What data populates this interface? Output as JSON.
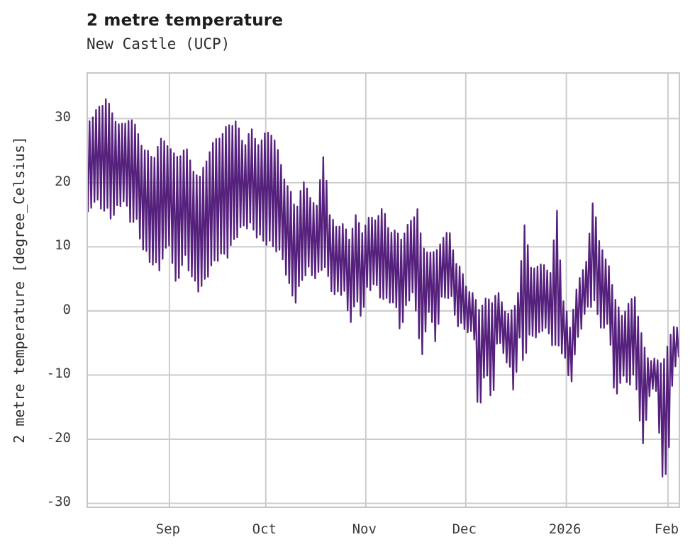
{
  "header": {
    "title": "2 metre temperature",
    "subtitle": "New Castle (UCP)"
  },
  "chart_data": {
    "type": "line",
    "title": "2 metre temperature",
    "subtitle": "New Castle (UCP)",
    "xlabel": "",
    "ylabel": "2 metre temperature [degree_Celsius]",
    "unit": "degree_Celsius",
    "grid": true,
    "legend": false,
    "line_color": "#56217D",
    "grid_color": "#cccccc",
    "frame_color": "#c7c7c7",
    "ylim": [
      -30.5,
      37.0
    ],
    "xlim_days": [
      0,
      182
    ],
    "y_ticks": [
      30,
      20,
      10,
      0,
      -10,
      -20,
      -30
    ],
    "x_ticks": [
      {
        "label": "Sep",
        "day": 25.1
      },
      {
        "label": "Oct",
        "day": 54.8
      },
      {
        "label": "Nov",
        "day": 85.6
      },
      {
        "label": "Dec",
        "day": 116.4
      },
      {
        "label": "2026",
        "day": 147.4
      },
      {
        "label": "Feb",
        "day": 178.7
      }
    ],
    "envelope_day_min_max": [
      [
        0,
        15,
        30.3
      ],
      [
        2,
        17,
        31
      ],
      [
        4,
        16,
        32.5
      ],
      [
        5.7,
        16,
        33.8
      ],
      [
        7,
        15,
        31.5
      ],
      [
        9,
        16,
        30
      ],
      [
        11,
        17,
        29
      ],
      [
        13,
        14,
        31
      ],
      [
        15,
        14,
        28.5
      ],
      [
        17,
        10,
        26
      ],
      [
        20,
        7,
        24
      ],
      [
        22,
        6.5,
        27
      ],
      [
        25,
        11,
        26.5
      ],
      [
        27,
        4.5,
        24
      ],
      [
        30,
        8,
        26
      ],
      [
        32,
        5,
        23
      ],
      [
        34.5,
        3.5,
        21
      ],
      [
        37,
        6,
        25
      ],
      [
        40,
        8,
        27.5
      ],
      [
        43,
        9,
        29
      ],
      [
        45.5,
        12,
        30.2
      ],
      [
        48,
        13,
        26
      ],
      [
        50,
        13,
        29
      ],
      [
        52,
        12,
        26.5
      ],
      [
        55,
        11,
        28
      ],
      [
        57,
        10,
        28.3
      ],
      [
        60,
        8,
        22
      ],
      [
        62,
        4,
        19.5
      ],
      [
        64,
        1.9,
        16
      ],
      [
        66,
        5,
        20.5
      ],
      [
        68,
        6,
        19
      ],
      [
        70.5,
        5,
        16.5
      ],
      [
        72.7,
        8,
        25.7
      ],
      [
        74.5,
        4,
        15
      ],
      [
        76.5,
        2,
        14
      ],
      [
        79,
        3,
        13.5
      ],
      [
        80.5,
        -2,
        12
      ],
      [
        82.5,
        2,
        15
      ],
      [
        84.5,
        -0.9,
        13
      ],
      [
        86,
        3,
        14.5
      ],
      [
        88.5,
        4,
        15
      ],
      [
        91,
        2,
        16.2
      ],
      [
        93,
        2,
        13
      ],
      [
        95,
        0,
        12.5
      ],
      [
        96.5,
        -3.8,
        12
      ],
      [
        98.5,
        2,
        13.5
      ],
      [
        100.3,
        3,
        15
      ],
      [
        101.3,
        -1,
        17.4
      ],
      [
        103,
        -7.1,
        10
      ],
      [
        105,
        0,
        10
      ],
      [
        107,
        -5,
        9
      ],
      [
        109,
        2,
        12
      ],
      [
        111.6,
        3,
        12.4
      ],
      [
        113.5,
        -2,
        8
      ],
      [
        115.5,
        -3,
        6
      ],
      [
        117,
        -3,
        4
      ],
      [
        119,
        -4,
        2.5
      ],
      [
        120.4,
        -17.3,
        1
      ],
      [
        122.5,
        -8,
        2
      ],
      [
        124.5,
        -16.1,
        2.1
      ],
      [
        126,
        -5,
        3.5
      ],
      [
        128,
        -6,
        1
      ],
      [
        130,
        -9,
        0
      ],
      [
        131.3,
        -12.7,
        0.5
      ],
      [
        133,
        -5,
        5
      ],
      [
        134.3,
        -8.4,
        14
      ],
      [
        136.5,
        -3,
        7.6
      ],
      [
        138.5,
        -4,
        7
      ],
      [
        140.5,
        -2,
        8
      ],
      [
        142.5,
        -5,
        6
      ],
      [
        144.6,
        -5.9,
        17
      ],
      [
        146.2,
        -6,
        2
      ],
      [
        147.6,
        -8,
        0
      ],
      [
        148.4,
        -12.2,
        -2
      ],
      [
        150.3,
        -6,
        3
      ],
      [
        152.3,
        -2,
        7
      ],
      [
        153.8,
        0,
        8.7
      ],
      [
        155.8,
        2,
        18.5
      ],
      [
        157.3,
        -1,
        12
      ],
      [
        159,
        -2.9,
        8.5
      ],
      [
        160.6,
        -2,
        7.8
      ],
      [
        162.3,
        -15,
        2
      ],
      [
        164.3,
        -10,
        0
      ],
      [
        166.3,
        -11,
        1
      ],
      [
        168.5,
        -10,
        3
      ],
      [
        171,
        -21.5,
        -5
      ],
      [
        173,
        -13,
        -7
      ],
      [
        175.2,
        -12,
        -7.5
      ],
      [
        177.2,
        -27.7,
        -7.2
      ],
      [
        178.8,
        -22.8,
        -5.1
      ],
      [
        180.3,
        -10,
        -1.6
      ],
      [
        182,
        -7,
        -2
      ]
    ]
  }
}
